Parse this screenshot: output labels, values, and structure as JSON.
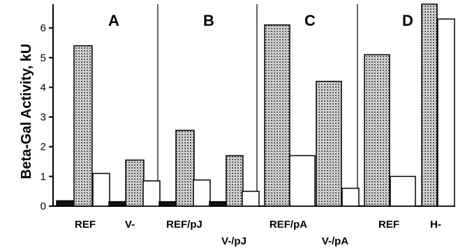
{
  "chart_data": {
    "type": "bar",
    "ylabel": "Beta-Gal Activity, kU",
    "ylim": [
      0,
      6.8
    ],
    "yticks": [
      "0",
      "1",
      "2",
      "3",
      "4",
      "5",
      "6"
    ],
    "grid": false,
    "panels": [
      {
        "label": "A",
        "groups": [
          {
            "category": "REF",
            "values": [
              0.18,
              5.4,
              1.1
            ]
          },
          {
            "category": "V-",
            "values": [
              0.15,
              1.55,
              0.85
            ]
          }
        ]
      },
      {
        "label": "B",
        "groups": [
          {
            "category": "REF/pJ",
            "values": [
              0.15,
              2.55,
              0.88
            ]
          },
          {
            "category": "V-/pJ",
            "values": [
              0.15,
              1.7,
              0.5
            ]
          }
        ]
      },
      {
        "label": "C",
        "groups": [
          {
            "category": "REF/pA",
            "values": [
              null,
              6.1,
              1.7
            ]
          },
          {
            "category": "V-/pA",
            "values": [
              null,
              4.2,
              0.6
            ]
          }
        ]
      },
      {
        "label": "D",
        "groups": [
          {
            "category": "REF",
            "values": [
              null,
              5.1,
              1.0
            ]
          },
          {
            "category": "H-",
            "values": [
              null,
              6.8,
              6.3
            ]
          }
        ]
      }
    ],
    "series_styles": [
      {
        "fill": "#111111"
      },
      {
        "fill": "url(#hatch)"
      },
      {
        "fill": "#ffffff"
      }
    ]
  }
}
